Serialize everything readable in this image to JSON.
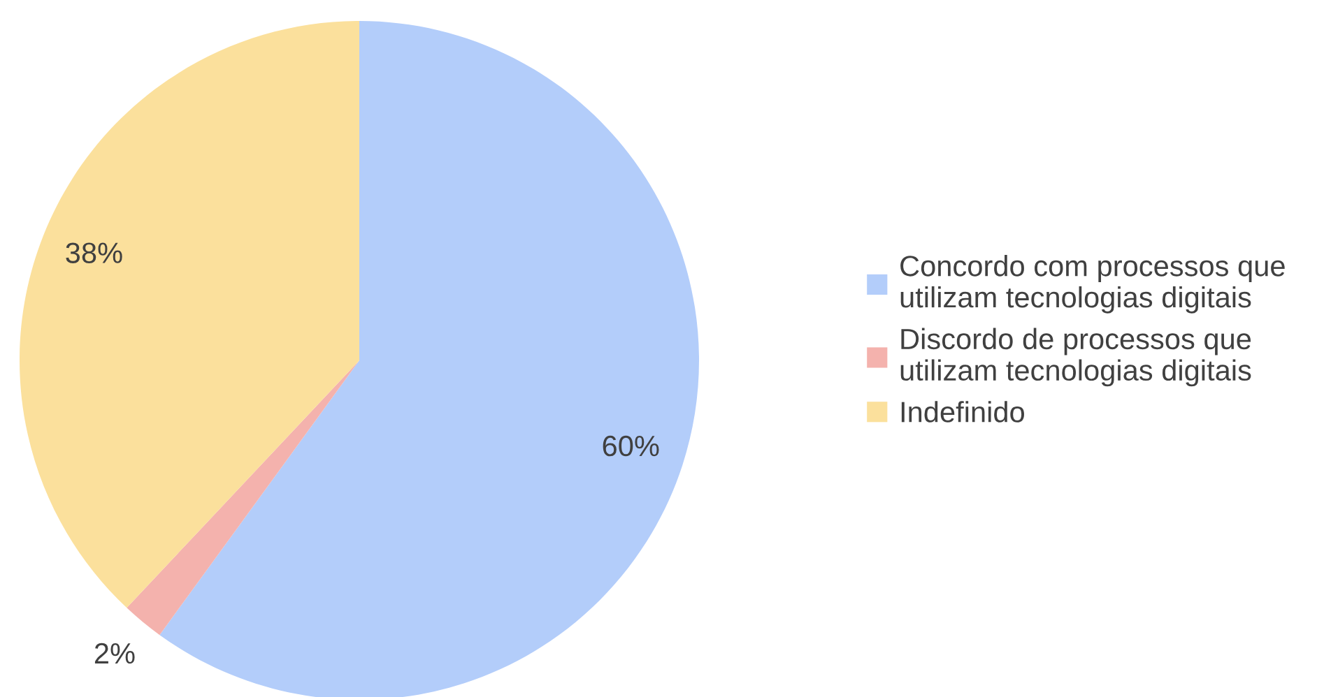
{
  "chart_data": {
    "type": "pie",
    "categories": [
      "Concordo com processos que\nutilizam tecnologias digitais",
      "Discordo de processos que\nutilizam tecnologias digitais",
      "Indefinido"
    ],
    "values": [
      60,
      2,
      38
    ],
    "colors": [
      "#b3cdfa",
      "#f4b2ad",
      "#fbe09c"
    ],
    "value_labels": [
      "60%",
      "2%",
      "38%"
    ],
    "legend": "right"
  }
}
